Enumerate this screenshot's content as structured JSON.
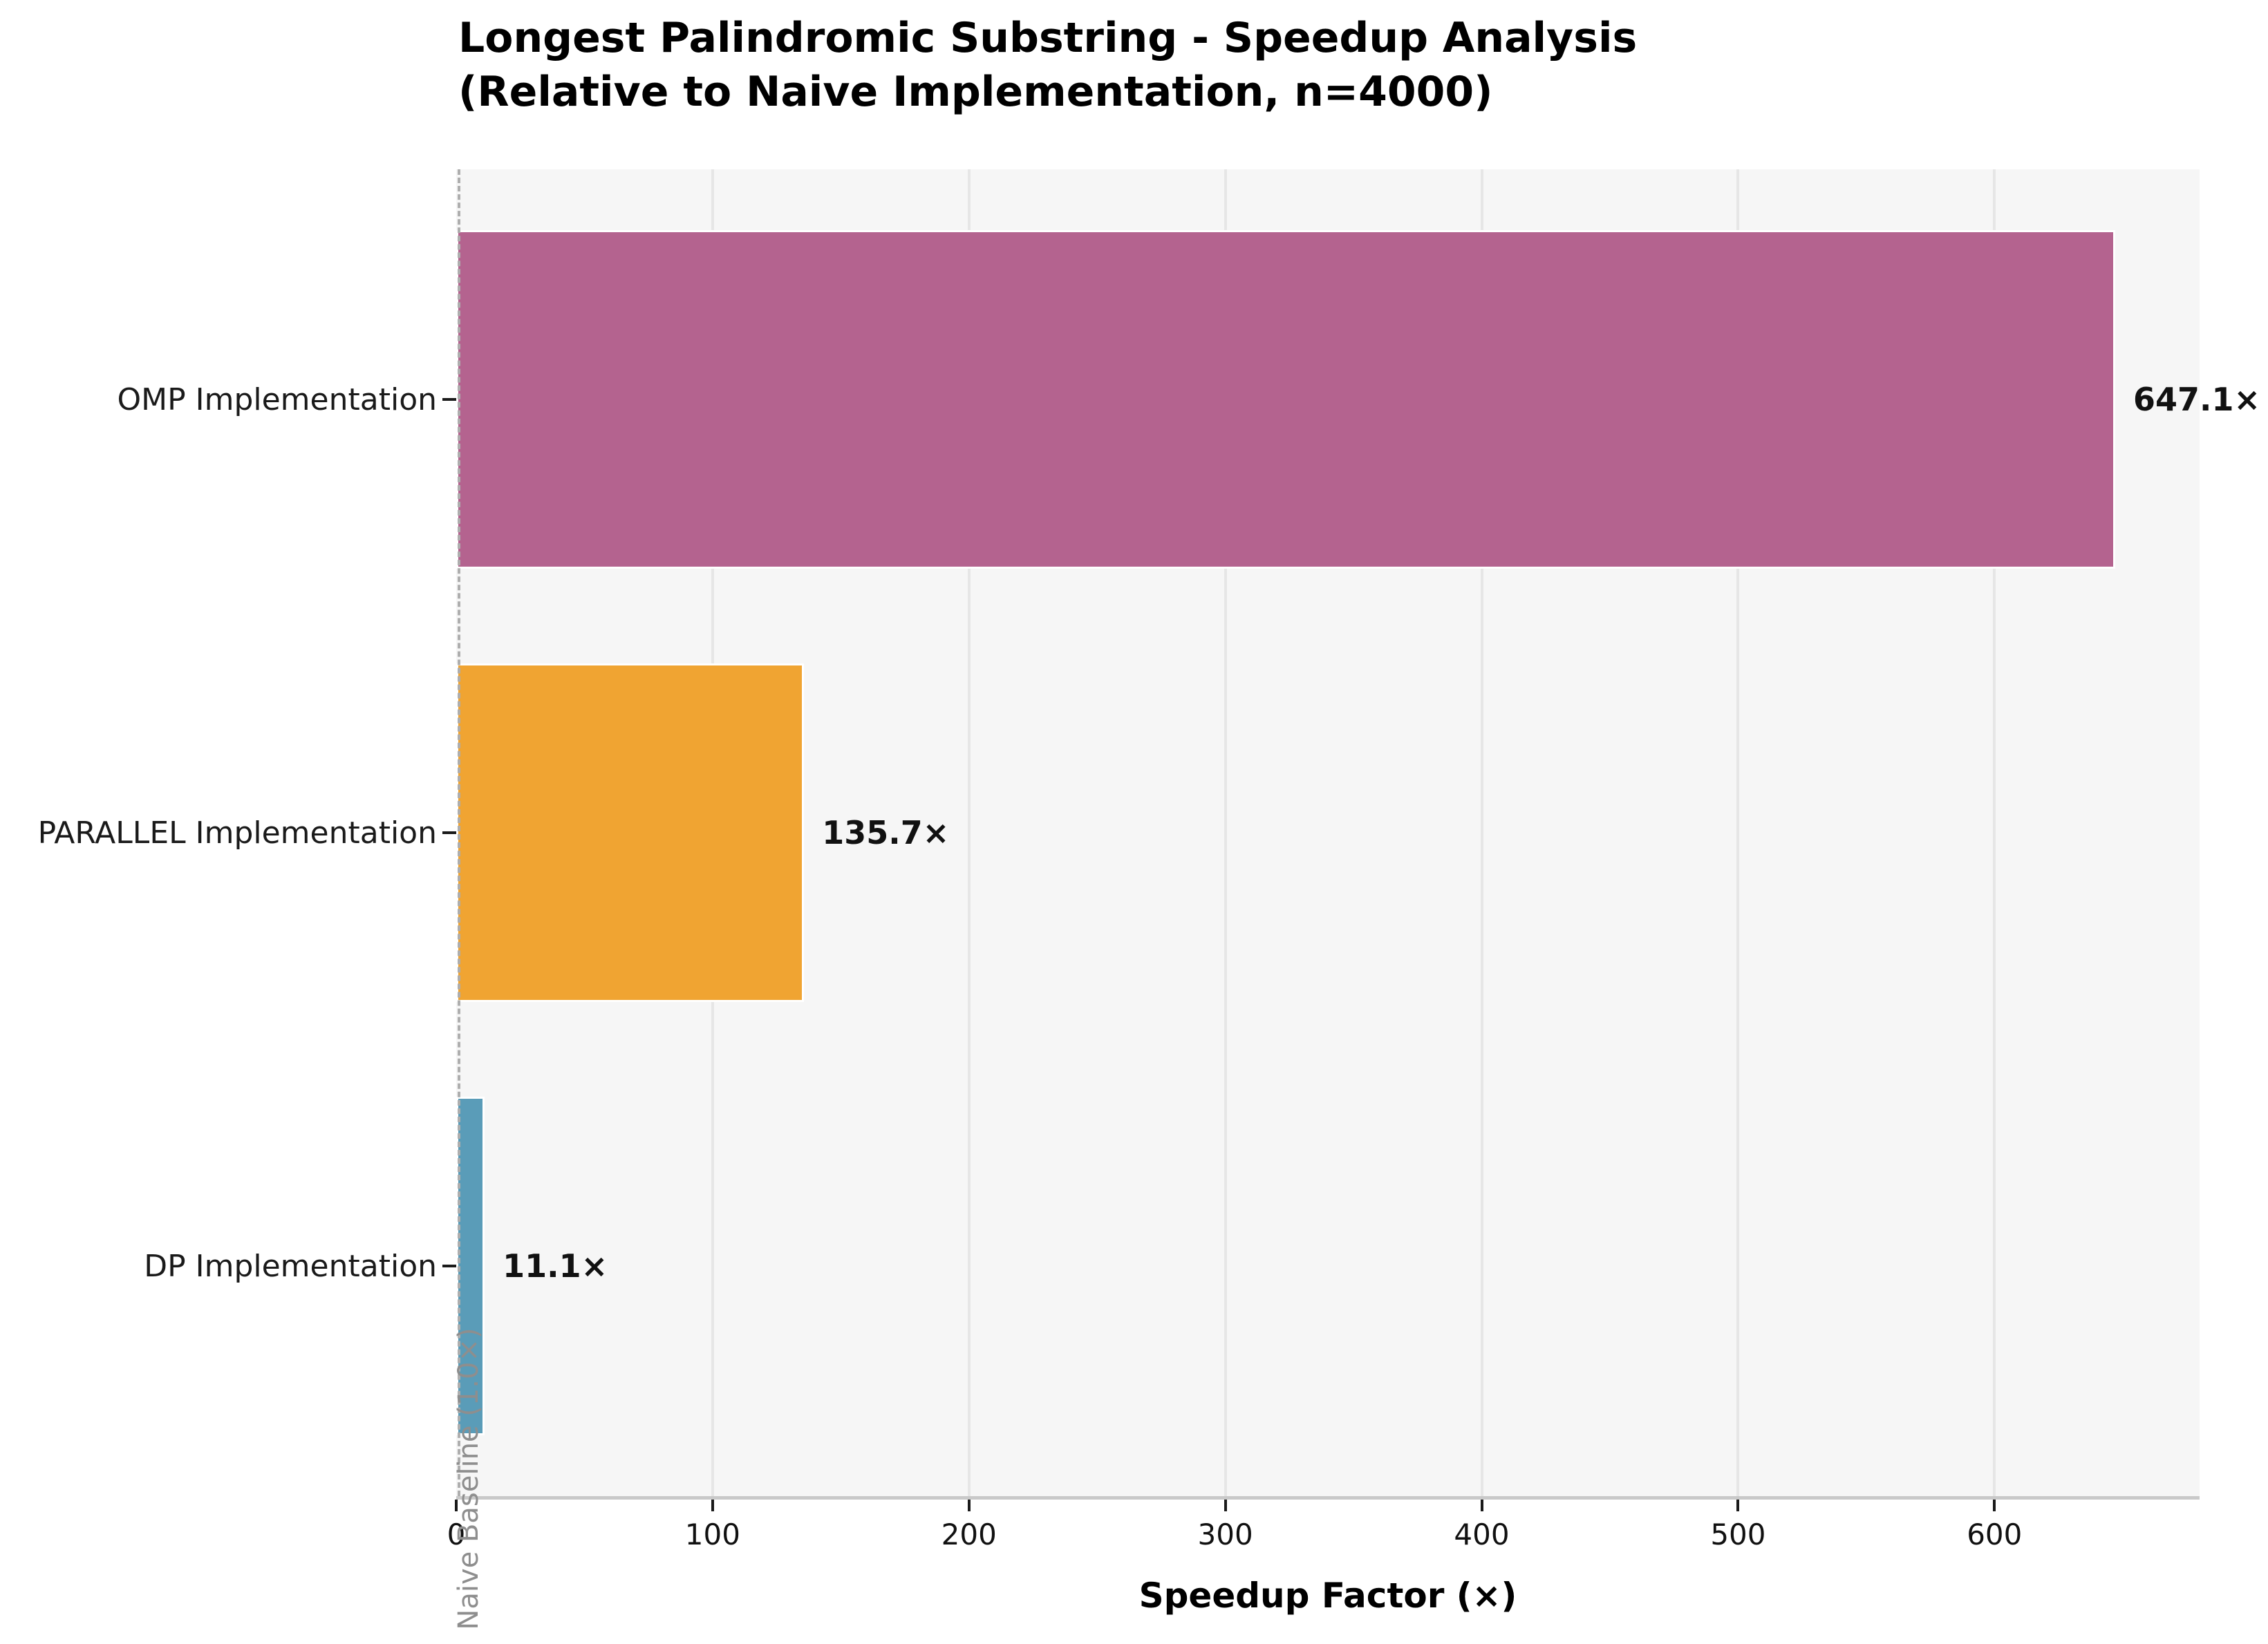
{
  "chart_data": {
    "type": "bar",
    "orientation": "horizontal",
    "title": "Longest Palindromic Substring - Speedup Analysis",
    "subtitle": "(Relative to Naive Implementation, n=4000)",
    "xlabel": "Speedup Factor (×)",
    "categories": [
      "OMP Implementation",
      "PARALLEL Implementation",
      "DP Implementation"
    ],
    "values": [
      647.1,
      135.7,
      11.1
    ],
    "value_labels": [
      "647.1×",
      "135.7×",
      "11.1×"
    ],
    "bar_colors": [
      "#b4638f",
      "#f0a432",
      "#5a9cb8"
    ],
    "xlim": [
      0,
      680
    ],
    "xticks": [
      0,
      100,
      200,
      300,
      400,
      500,
      600
    ],
    "xtick_labels": [
      "0",
      "100",
      "200",
      "300",
      "400",
      "500",
      "600"
    ],
    "grid": true,
    "legend": false,
    "baseline": {
      "value": 1.0,
      "label": "Naive Baseline (1.0×)"
    },
    "colors": {
      "plot_background": "#f6f6f6",
      "grid_color": "#e6e6e6",
      "spine_color": "#c9c9c9",
      "baseline_line_color": "#aeaeae",
      "baseline_label_color": "#8e8e8e",
      "text_color": "#111111"
    }
  }
}
